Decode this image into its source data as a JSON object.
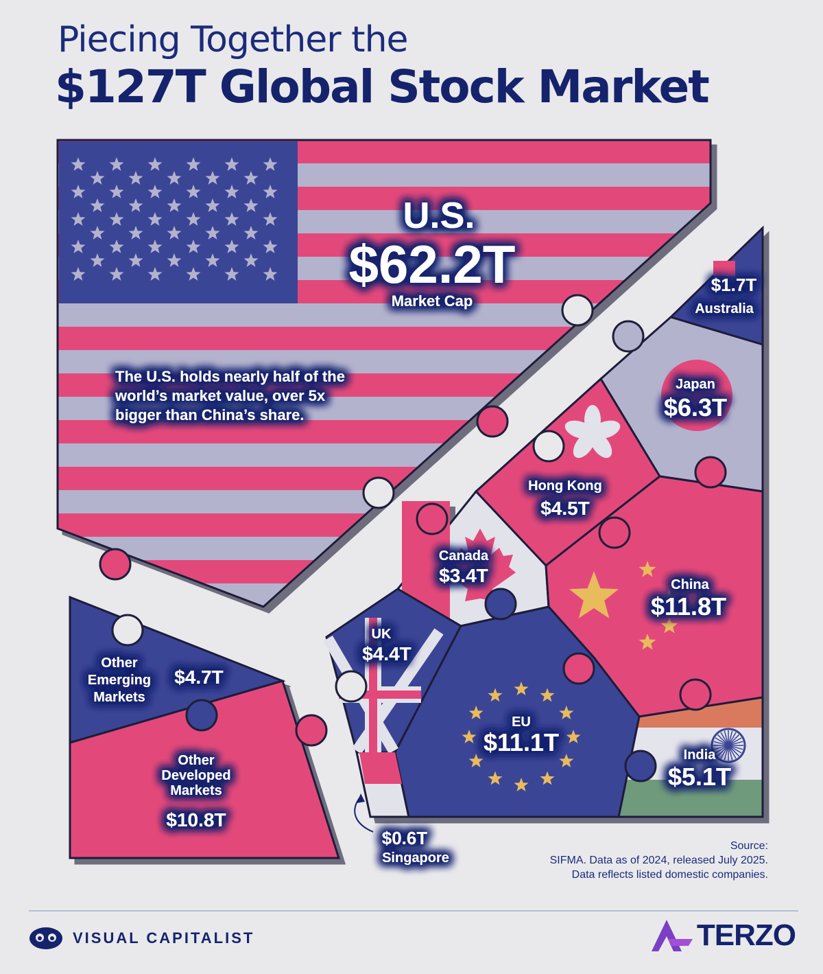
{
  "title": {
    "line1": "Piecing Together the",
    "line2": "$127T Global Stock Market"
  },
  "chart_data": {
    "type": "puzzle",
    "unit": "$T",
    "segments": [
      {
        "name": "U.S.",
        "value": 62.2,
        "label": "$62.2T",
        "sublabel": "Market Cap",
        "color": "#e2487a"
      },
      {
        "name": "China",
        "value": 11.8,
        "label": "$11.8T",
        "color": "#e2487a"
      },
      {
        "name": "EU",
        "value": 11.1,
        "label": "$11.1T",
        "color": "#3a4595"
      },
      {
        "name": "Other Developed Markets",
        "value": 10.8,
        "label": "$10.8T",
        "color": "#e2487a"
      },
      {
        "name": "Japan",
        "value": 6.3,
        "label": "$6.3T",
        "color": "#b3b3ce"
      },
      {
        "name": "India",
        "value": 5.1,
        "label": "$5.1T",
        "color": "#e2e2ea"
      },
      {
        "name": "Other Emerging Markets",
        "value": 4.7,
        "label": "$4.7T",
        "color": "#3a4595"
      },
      {
        "name": "Hong Kong",
        "value": 4.5,
        "label": "$4.5T",
        "color": "#e2487a"
      },
      {
        "name": "UK",
        "value": 4.4,
        "label": "$4.4T",
        "color": "#3a4595"
      },
      {
        "name": "Canada",
        "value": 3.4,
        "label": "$3.4T",
        "color": "#e2487a"
      },
      {
        "name": "Australia",
        "value": 1.7,
        "label": "$1.7T",
        "color": "#3a4595"
      },
      {
        "name": "Singapore",
        "value": 0.6,
        "label": "$0.6T",
        "color": "#e2487a"
      }
    ],
    "annotation": {
      "lines": [
        "The U.S. holds nearly half of the",
        "world’s market value, over 5x",
        "bigger than China’s share."
      ]
    },
    "labels": {
      "other_emerging": [
        "Other",
        "Emerging",
        "Markets"
      ],
      "other_developed": [
        "Other",
        "Developed",
        "Markets"
      ]
    }
  },
  "source": {
    "line1": "Source:",
    "line2": "SIFMA. Data as of 2024, released July 2025.",
    "line3": "Data reflects listed domestic companies."
  },
  "footer": {
    "left_brand": "VISUAL CAPITALIST",
    "left_logo_icon": "visual-capitalist-logo-icon",
    "right_brand": "TERZO",
    "right_logo_icon": "terzo-logo-icon"
  },
  "colors": {
    "navy": "#15236d",
    "pink": "#e2487a",
    "lavender": "#b3b3ce",
    "blue": "#3a4595",
    "background": "#e9e9ec"
  }
}
